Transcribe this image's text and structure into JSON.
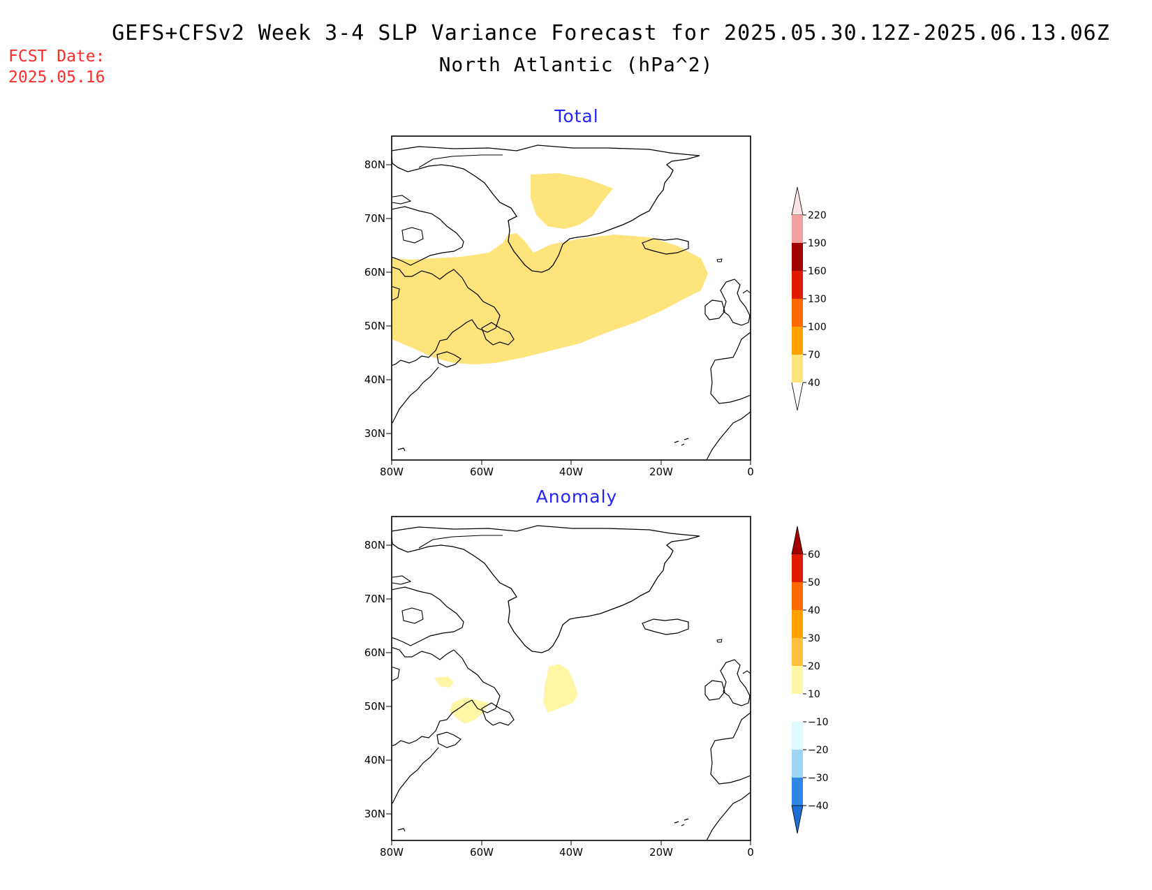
{
  "title": {
    "line1": "GEFS+CFSv2 Week 3-4 SLP Variance Forecast for 2025.05.30.12Z-2025.06.13.06Z",
    "line2": "North Atlantic (hPa^2)"
  },
  "forecast_date": {
    "label": "FCST Date:",
    "value": "2025.05.16"
  },
  "colors": {
    "title_text": "#000000",
    "forecast_date_text": "#ff2a2a",
    "panel_title_text": "#2323ff",
    "land_outline": "#000000"
  },
  "panels": [
    {
      "title": "Total",
      "lat_ticks": [
        "80N",
        "70N",
        "60N",
        "50N",
        "40N",
        "30N"
      ],
      "lon_ticks": [
        "80W",
        "60W",
        "40W",
        "20W",
        "0"
      ],
      "colorbar": {
        "labels": [
          "220",
          "190",
          "160",
          "130",
          "100",
          "70",
          "40"
        ],
        "colors": [
          "#fde4e4",
          "#f5a0a0",
          "#a30000",
          "#e01b00",
          "#ff6a00",
          "#ffa200",
          "#ffe37b"
        ]
      },
      "shaded_regions": [
        {
          "name": "north-atlantic-band",
          "level": "40-70"
        },
        {
          "name": "greenland-interior",
          "level": "40-70"
        }
      ]
    },
    {
      "title": "Anomaly",
      "lat_ticks": [
        "80N",
        "70N",
        "60N",
        "50N",
        "40N",
        "30N"
      ],
      "lon_ticks": [
        "80W",
        "60W",
        "40W",
        "20W",
        "0"
      ],
      "colorbar": {
        "labels": [
          "60",
          "50",
          "40",
          "30",
          "20",
          "10",
          "−10",
          "−20",
          "−30",
          "−40"
        ],
        "colors": [
          "#a30000",
          "#e01b00",
          "#ff6a00",
          "#ffa200",
          "#ffbe3c",
          "#fff6a6",
          "#ffffff",
          "#dffbff",
          "#9cd4f8",
          "#2f86e6",
          "#1e6ed4"
        ]
      },
      "shaded_regions": [
        {
          "name": "central-atlantic-patch",
          "level": "10-20"
        },
        {
          "name": "gulf-st-lawrence-patch",
          "level": "10-20"
        },
        {
          "name": "labrador-patch",
          "level": "10-20"
        }
      ]
    }
  ]
}
